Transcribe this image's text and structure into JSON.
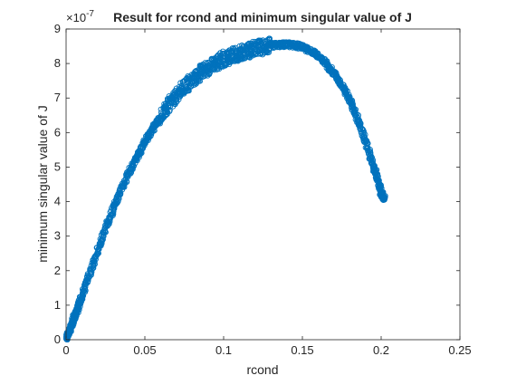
{
  "chart_data": {
    "type": "scatter",
    "title": "Result for rcond and minimum singular value of J",
    "xlabel": "rcond",
    "ylabel": "minimum singular value of J",
    "y_exponent_label": "×10",
    "y_exponent_power": "-7",
    "xlim": [
      0,
      0.25
    ],
    "ylim": [
      0,
      9
    ],
    "y_scale_factor": 1e-07,
    "xticks": [
      0,
      0.05,
      0.1,
      0.15,
      0.2,
      0.25
    ],
    "xtick_labels": [
      "0",
      "0.05",
      "0.1",
      "0.15",
      "0.2",
      "0.25"
    ],
    "yticks": [
      0,
      1,
      2,
      3,
      4,
      5,
      6,
      7,
      8,
      9
    ],
    "ytick_labels": [
      "0",
      "1",
      "2",
      "3",
      "4",
      "5",
      "6",
      "7",
      "8",
      "9"
    ],
    "grid": false,
    "marker": "open-circle",
    "marker_color": "#0072BD",
    "series": [
      {
        "x": [
          0.0,
          0.002,
          0.004,
          0.006,
          0.008,
          0.01,
          0.015,
          0.02,
          0.025,
          0.03,
          0.035,
          0.04,
          0.045,
          0.05,
          0.055,
          0.06,
          0.065,
          0.07,
          0.075,
          0.08,
          0.085,
          0.09,
          0.095,
          0.1,
          0.105,
          0.11,
          0.115,
          0.12,
          0.125,
          0.13,
          0.135,
          0.14,
          0.145,
          0.15,
          0.155,
          0.16,
          0.165,
          0.17,
          0.175,
          0.18,
          0.185,
          0.19,
          0.195,
          0.198,
          0.2,
          0.201,
          0.202
        ],
        "y": [
          0.0,
          0.25,
          0.5,
          0.75,
          1.0,
          1.25,
          1.9,
          2.55,
          3.2,
          3.8,
          4.35,
          4.85,
          5.3,
          5.72,
          6.1,
          6.45,
          6.78,
          7.05,
          7.3,
          7.52,
          7.72,
          7.88,
          8.02,
          8.13,
          8.22,
          8.3,
          8.37,
          8.43,
          8.48,
          8.52,
          8.54,
          8.55,
          8.53,
          8.48,
          8.38,
          8.22,
          8.0,
          7.72,
          7.38,
          6.95,
          6.4,
          5.75,
          5.05,
          4.6,
          4.25,
          4.15,
          4.1
        ]
      }
    ]
  }
}
